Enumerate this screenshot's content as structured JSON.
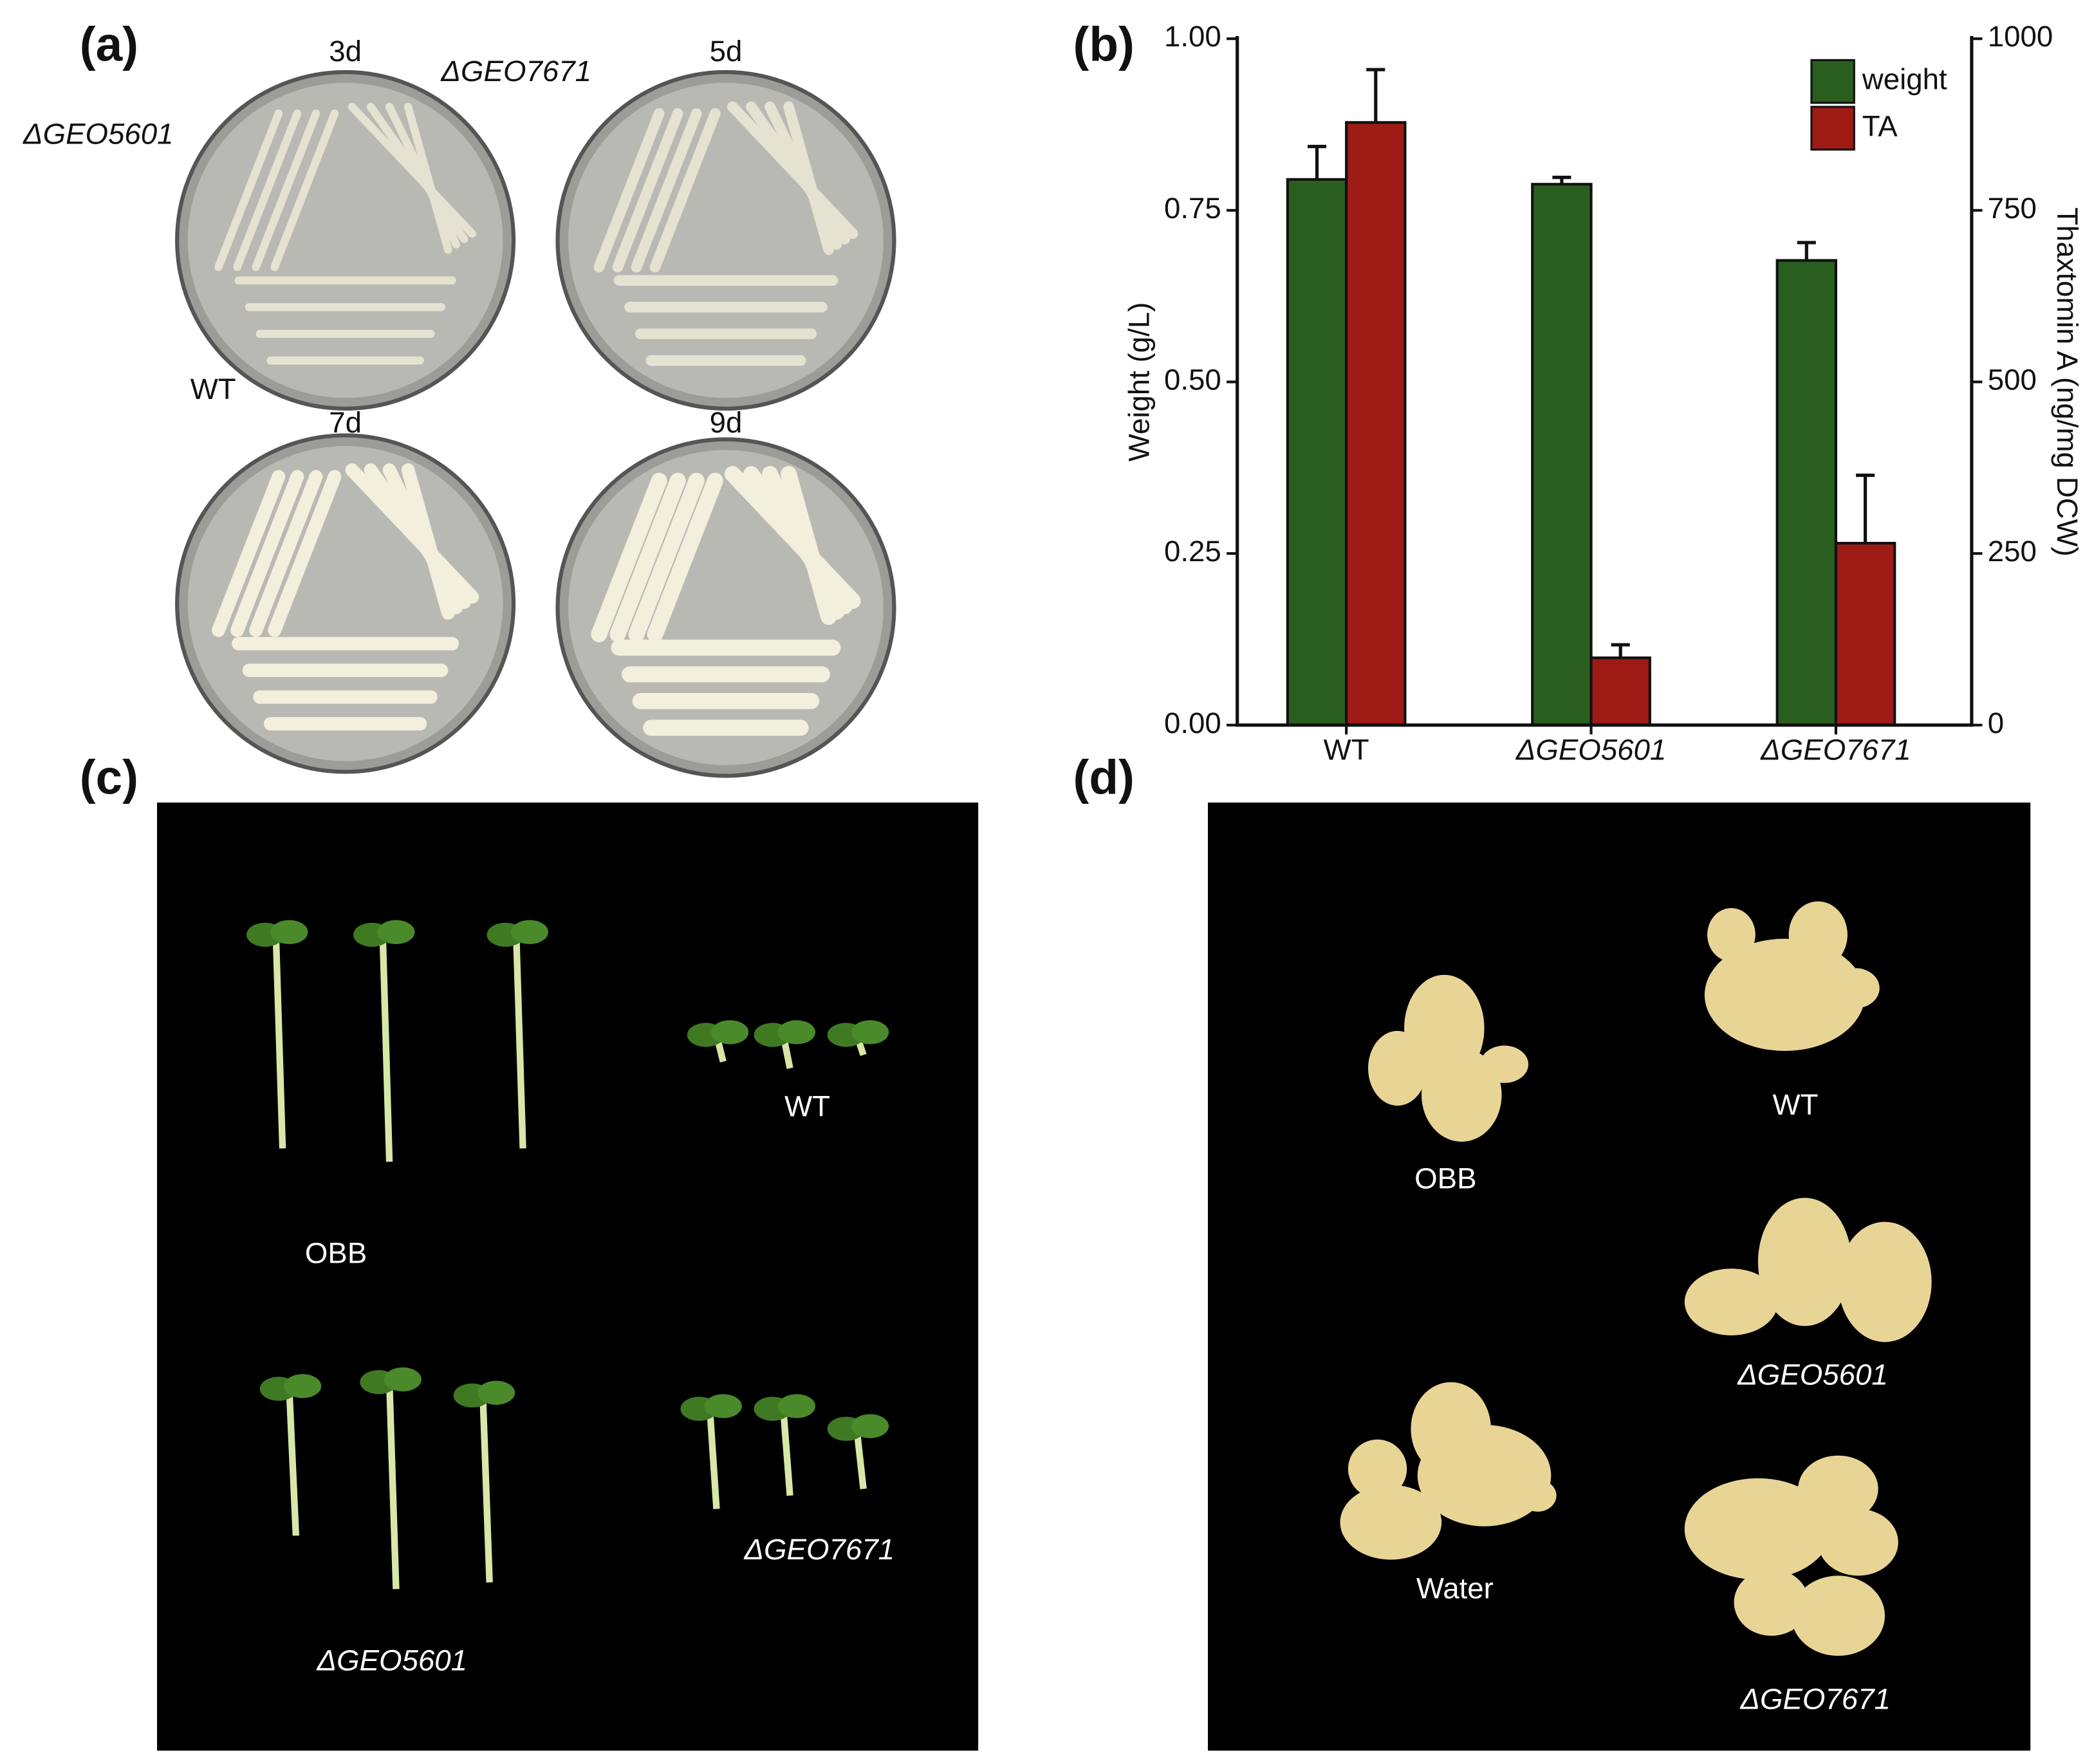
{
  "panels": {
    "a": {
      "label": "(a)",
      "days": [
        "3d",
        "5d",
        "7d",
        "9d"
      ],
      "strains": [
        "ΔGEO7671",
        "ΔGEO5601",
        "WT"
      ]
    },
    "b": {
      "label": "(b)"
    },
    "c": {
      "label": "(c)",
      "groups": [
        "OBB",
        "WT",
        "ΔGEO5601",
        "ΔGEO7671"
      ]
    },
    "d": {
      "label": "(d)",
      "groups": [
        "OBB",
        "WT",
        "ΔGEO5601",
        "Water",
        "ΔGEO7671"
      ]
    }
  },
  "chart_data": {
    "type": "bar",
    "categories": [
      "WT",
      "ΔGEO5601",
      "ΔGEO7671"
    ],
    "series": [
      {
        "name": "weight",
        "color": "#2a5e1e",
        "values": [
          0.795,
          0.788,
          0.677
        ],
        "errors": [
          0.048,
          0.01,
          0.026
        ]
      },
      {
        "name": "TA",
        "color": "#9e1b16",
        "axis": "y2",
        "values": [
          878,
          98,
          265
        ],
        "errors": [
          77,
          19,
          99
        ]
      }
    ],
    "ylabel": "Weight (g/L)",
    "y2label": "Thaxtomin A (ng/mg DCW)",
    "ylim": [
      0,
      1
    ],
    "yticks": [
      {
        "value": 0,
        "label": "0.00"
      },
      {
        "value": 0.25,
        "label": "0.25"
      },
      {
        "value": 0.5,
        "label": "0.50"
      },
      {
        "value": 0.75,
        "label": "0.75"
      },
      {
        "value": 1,
        "label": "1.00"
      }
    ],
    "y2lim": [
      0,
      1000
    ],
    "y2ticks": [
      0,
      250,
      500,
      750,
      1000
    ],
    "legend": "upper right"
  }
}
